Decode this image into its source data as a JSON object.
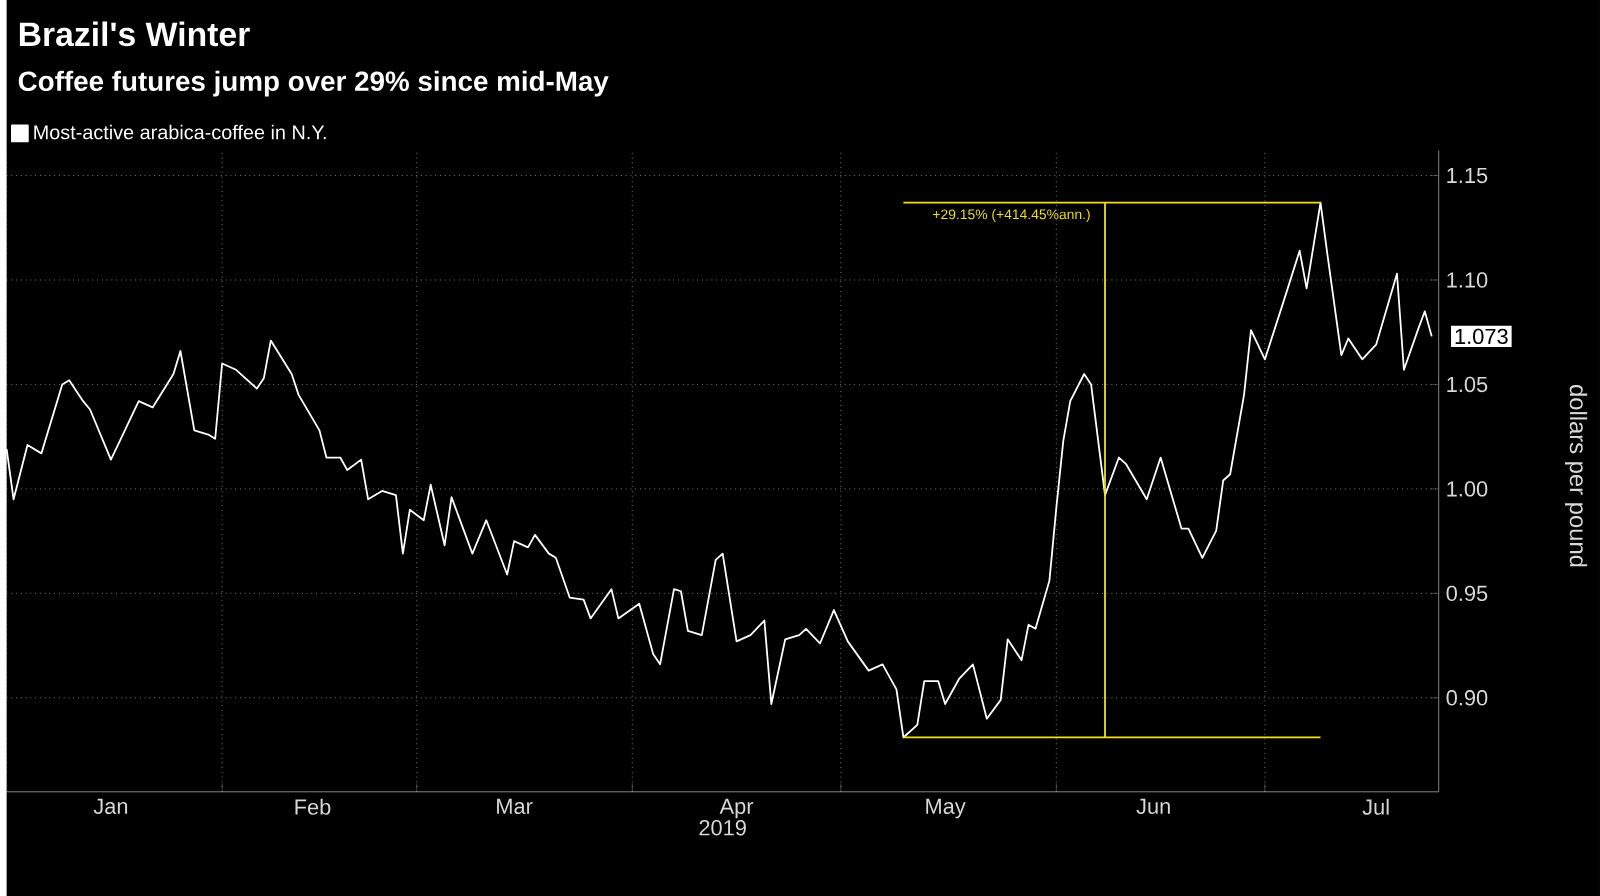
{
  "chart_data": {
    "type": "line",
    "title": "Brazil's Winter",
    "subtitle": "Coffee futures jump over 29% since mid-May",
    "xlabel": "2019",
    "ylabel": "dollars per pound",
    "legend": "top left",
    "grid": true,
    "xlim": [
      "2019-01-01",
      "2019-07-26"
    ],
    "ylim": [
      0.855,
      1.162
    ],
    "yticks": [
      {
        "value": 0.9,
        "label": "0.90"
      },
      {
        "value": 0.95,
        "label": "0.95"
      },
      {
        "value": 1.0,
        "label": "1.00"
      },
      {
        "value": 1.05,
        "label": "1.05"
      },
      {
        "value": 1.1,
        "label": "1.10"
      },
      {
        "value": 1.15,
        "label": "1.15"
      }
    ],
    "xticks": [
      {
        "value": "2019-01-01",
        "label": null
      },
      {
        "value": "2019-02-01",
        "label": null
      },
      {
        "value": "2019-03-01",
        "label": null
      },
      {
        "value": "2019-04-01",
        "label": null
      },
      {
        "value": "2019-05-01",
        "label": null
      },
      {
        "value": "2019-06-01",
        "label": null
      },
      {
        "value": "2019-07-01",
        "label": null
      },
      {
        "value": "2019-01-16",
        "label": "Jan"
      },
      {
        "value": "2019-02-14",
        "label": "Feb"
      },
      {
        "value": "2019-03-15",
        "label": "Mar"
      },
      {
        "value": "2019-04-16",
        "label": "Apr"
      },
      {
        "value": "2019-05-16",
        "label": "May"
      },
      {
        "value": "2019-06-15",
        "label": "Jun"
      },
      {
        "value": "2019-07-17",
        "label": "Jul"
      }
    ],
    "annotations": [
      {
        "text": "+29.15% (+414.45%ann.)",
        "x": "2019-06-08",
        "y": 1.137
      },
      {
        "text": "1.073",
        "x": "2019-07-25",
        "y": 1.073
      }
    ],
    "series": [
      {
        "name": "Most-active arabica-coffee in N.Y.",
        "color": "#ffffff",
        "x": [
          "2019-01-01",
          "2019-01-02",
          "2019-01-04",
          "2019-01-06",
          "2019-01-09",
          "2019-01-10",
          "2019-01-12",
          "2019-01-13",
          "2019-01-16",
          "2019-01-17",
          "2019-01-20",
          "2019-01-22",
          "2019-01-25",
          "2019-01-26",
          "2019-01-28",
          "2019-01-30",
          "2019-01-31",
          "2019-02-01",
          "2019-02-03",
          "2019-02-06",
          "2019-02-07",
          "2019-02-08",
          "2019-02-11",
          "2019-02-12",
          "2019-02-15",
          "2019-02-16",
          "2019-02-18",
          "2019-02-19",
          "2019-02-21",
          "2019-02-22",
          "2019-02-24",
          "2019-02-26",
          "2019-02-27",
          "2019-02-28",
          "2019-03-02",
          "2019-03-03",
          "2019-03-05",
          "2019-03-06",
          "2019-03-09",
          "2019-03-11",
          "2019-03-14",
          "2019-03-15",
          "2019-03-17",
          "2019-03-18",
          "2019-03-20",
          "2019-03-21",
          "2019-03-23",
          "2019-03-25",
          "2019-03-26",
          "2019-03-29",
          "2019-03-30",
          "2019-04-02",
          "2019-04-04",
          "2019-04-05",
          "2019-04-07",
          "2019-04-08",
          "2019-04-09",
          "2019-04-11",
          "2019-04-13",
          "2019-04-14",
          "2019-04-16",
          "2019-04-18",
          "2019-04-20",
          "2019-04-21",
          "2019-04-23",
          "2019-04-25",
          "2019-04-26",
          "2019-04-28",
          "2019-04-30",
          "2019-05-02",
          "2019-05-05",
          "2019-05-07",
          "2019-05-09",
          "2019-05-10",
          "2019-05-12",
          "2019-05-13",
          "2019-05-15",
          "2019-05-16",
          "2019-05-18",
          "2019-05-20",
          "2019-05-22",
          "2019-05-24",
          "2019-05-25",
          "2019-05-27",
          "2019-05-28",
          "2019-05-29",
          "2019-05-31",
          "2019-06-01",
          "2019-06-02",
          "2019-06-03",
          "2019-06-05",
          "2019-06-06",
          "2019-06-08",
          "2019-06-10",
          "2019-06-11",
          "2019-06-14",
          "2019-06-16",
          "2019-06-19",
          "2019-06-20",
          "2019-06-22",
          "2019-06-24",
          "2019-06-25",
          "2019-06-26",
          "2019-06-28",
          "2019-06-29",
          "2019-07-01",
          "2019-07-04",
          "2019-07-06",
          "2019-07-07",
          "2019-07-09",
          "2019-07-10",
          "2019-07-12",
          "2019-07-13",
          "2019-07-15",
          "2019-07-17",
          "2019-07-20",
          "2019-07-21",
          "2019-07-23",
          "2019-07-24",
          "2019-07-25"
        ],
        "values": [
          1.019,
          0.995,
          1.021,
          1.017,
          1.05,
          1.052,
          1.042,
          1.038,
          1.014,
          1.021,
          1.042,
          1.039,
          1.055,
          1.066,
          1.028,
          1.026,
          1.024,
          1.06,
          1.057,
          1.048,
          1.053,
          1.071,
          1.055,
          1.045,
          1.028,
          1.015,
          1.015,
          1.009,
          1.014,
          0.995,
          0.999,
          0.997,
          0.969,
          0.99,
          0.985,
          1.002,
          0.973,
          0.996,
          0.969,
          0.985,
          0.959,
          0.975,
          0.972,
          0.978,
          0.969,
          0.967,
          0.948,
          0.947,
          0.938,
          0.952,
          0.938,
          0.945,
          0.921,
          0.916,
          0.952,
          0.951,
          0.932,
          0.93,
          0.966,
          0.969,
          0.927,
          0.93,
          0.937,
          0.897,
          0.928,
          0.93,
          0.933,
          0.926,
          0.942,
          0.927,
          0.913,
          0.916,
          0.904,
          0.881,
          0.887,
          0.908,
          0.908,
          0.897,
          0.909,
          0.916,
          0.89,
          0.899,
          0.928,
          0.918,
          0.935,
          0.933,
          0.956,
          0.991,
          1.023,
          1.042,
          1.055,
          1.05,
          0.997,
          1.015,
          1.012,
          0.995,
          1.015,
          0.981,
          0.981,
          0.967,
          0.98,
          1.004,
          1.007,
          1.045,
          1.076,
          1.062,
          1.093,
          1.114,
          1.096,
          1.137,
          1.112,
          1.064,
          1.072,
          1.062,
          1.069,
          1.103,
          1.057,
          1.076,
          1.085,
          1.073
        ]
      },
      {
        "color": "#f2e01c",
        "x": [
          "2019-05-10",
          "2019-07-09"
        ],
        "values": [
          0.881,
          0.881
        ]
      },
      {
        "color": "#f2e01c",
        "x": [
          "2019-05-10",
          "2019-07-09"
        ],
        "values": [
          1.137,
          1.137
        ]
      },
      {
        "color": "#f2e01c",
        "x": [
          "2019-06-08",
          "2019-06-08"
        ],
        "values": [
          0.881,
          1.137
        ]
      }
    ]
  }
}
